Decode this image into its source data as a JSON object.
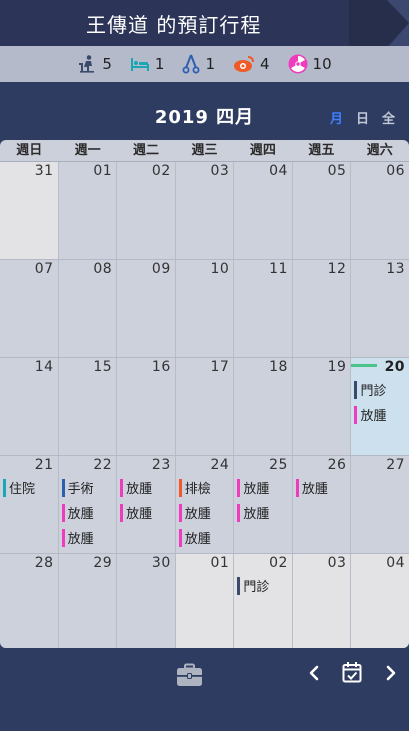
{
  "header": {
    "title": "王傳道  的預訂行程"
  },
  "stats": [
    {
      "icon": "outpatient-icon",
      "count": "5",
      "color": "#3b4a6b"
    },
    {
      "icon": "hospital-bed-icon",
      "count": "1",
      "color": "#1aa6b2"
    },
    {
      "icon": "surgery-scissors-icon",
      "count": "1",
      "color": "#2c5fb0"
    },
    {
      "icon": "examination-eye-icon",
      "count": "4",
      "color": "#f05a28"
    },
    {
      "icon": "radiation-icon",
      "count": "10",
      "color": "#ef3bbd"
    }
  ],
  "calendar": {
    "month_title": "2019  四月",
    "views": [
      "月",
      "日",
      "全"
    ],
    "active_view": "月",
    "weekdays": [
      "週日",
      "週一",
      "週二",
      "週三",
      "週四",
      "週五",
      "週六"
    ],
    "weeks": [
      [
        {
          "day": "31",
          "other": true
        },
        {
          "day": "01"
        },
        {
          "day": "02"
        },
        {
          "day": "03"
        },
        {
          "day": "04"
        },
        {
          "day": "05"
        },
        {
          "day": "06"
        }
      ],
      [
        {
          "day": "07"
        },
        {
          "day": "08"
        },
        {
          "day": "09"
        },
        {
          "day": "10"
        },
        {
          "day": "11"
        },
        {
          "day": "12"
        },
        {
          "day": "13"
        }
      ],
      [
        {
          "day": "14"
        },
        {
          "day": "15"
        },
        {
          "day": "16"
        },
        {
          "day": "17"
        },
        {
          "day": "18"
        },
        {
          "day": "19"
        },
        {
          "day": "20",
          "today": true,
          "events": [
            {
              "label": "門診",
              "color": "#3b4a6b"
            },
            {
              "label": "放腫",
              "color": "#ef3bbd"
            }
          ]
        }
      ],
      [
        {
          "day": "21",
          "events": [
            {
              "label": "住院",
              "color": "#1aa6b2"
            }
          ]
        },
        {
          "day": "22",
          "events": [
            {
              "label": "手術",
              "color": "#2c5fb0"
            },
            {
              "label": "放腫",
              "color": "#ef3bbd"
            },
            {
              "label": "放腫",
              "color": "#ef3bbd"
            }
          ]
        },
        {
          "day": "23",
          "events": [
            {
              "label": "放腫",
              "color": "#ef3bbd"
            },
            {
              "label": "放腫",
              "color": "#ef3bbd"
            }
          ]
        },
        {
          "day": "24",
          "events": [
            {
              "label": "排檢",
              "color": "#f05a28"
            },
            {
              "label": "放腫",
              "color": "#ef3bbd"
            },
            {
              "label": "放腫",
              "color": "#ef3bbd"
            }
          ]
        },
        {
          "day": "25",
          "events": [
            {
              "label": "放腫",
              "color": "#ef3bbd"
            },
            {
              "label": "放腫",
              "color": "#ef3bbd"
            }
          ]
        },
        {
          "day": "26",
          "events": [
            {
              "label": "放腫",
              "color": "#ef3bbd"
            }
          ]
        },
        {
          "day": "27"
        }
      ],
      [
        {
          "day": "28"
        },
        {
          "day": "29"
        },
        {
          "day": "30"
        },
        {
          "day": "01",
          "other": true
        },
        {
          "day": "02",
          "other": true,
          "events": [
            {
              "label": "門診",
              "color": "#3b4a6b"
            }
          ]
        },
        {
          "day": "03",
          "other": true
        },
        {
          "day": "04",
          "other": true
        }
      ]
    ]
  },
  "toolbar": {
    "briefcase": "briefcase-icon",
    "prev": "chevron-left-icon",
    "today": "calendar-check-icon",
    "next": "chevron-right-icon"
  }
}
